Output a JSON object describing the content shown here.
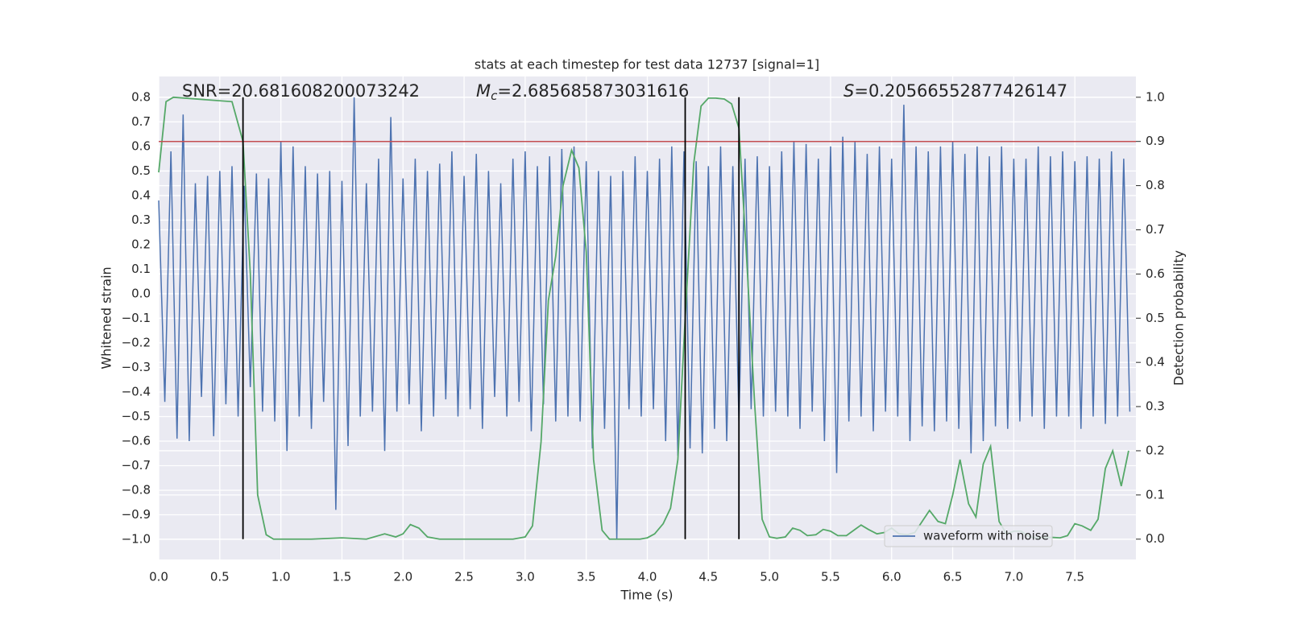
{
  "chart_data": {
    "type": "line",
    "title": "stats at each timestep for test data 12737 [signal=1]",
    "xlabel": "Time (s)",
    "ylabel": "Whitened strain",
    "y2label": "Detection probability",
    "xlim": [
      0,
      8
    ],
    "ylim": [
      -1.082,
      0.885
    ],
    "y2lim": [
      -0.046,
      1.047
    ],
    "xticks": [
      {
        "value": 0,
        "label": "0.0"
      },
      0.5,
      {
        "value": 1,
        "label": "1.0"
      },
      1.5,
      {
        "value": 2,
        "label": "2.0"
      },
      2.5,
      {
        "value": 3,
        "label": "3.0"
      },
      3.5,
      {
        "value": 4,
        "label": "4.0"
      },
      4.5,
      {
        "value": 5,
        "label": "5.0"
      },
      5.5,
      {
        "value": 6,
        "label": "6.0"
      },
      6.5,
      {
        "value": 7,
        "label": "7.0"
      },
      7.5
    ],
    "yticks": [
      0.8,
      0.7,
      0.6,
      0.5,
      0.4,
      0.3,
      0.2,
      0.1,
      {
        "value": 0,
        "label": "0.0"
      },
      {
        "value": -0.1,
        "label": "−0.1"
      },
      {
        "value": -0.2,
        "label": "−0.2"
      },
      {
        "value": -0.3,
        "label": "−0.3"
      },
      {
        "value": -0.4,
        "label": "−0.4"
      },
      {
        "value": -0.5,
        "label": "−0.5"
      },
      {
        "value": -0.6,
        "label": "−0.6"
      },
      {
        "value": -0.7,
        "label": "−0.7"
      },
      {
        "value": -0.8,
        "label": "−0.8"
      },
      {
        "value": -0.9,
        "label": "−0.9"
      },
      {
        "value": -1,
        "label": "−1.0"
      }
    ],
    "y2ticks": [
      {
        "value": 1,
        "label": "1.0"
      },
      0.9,
      0.8,
      0.7,
      0.6,
      0.5,
      0.4,
      0.3,
      0.2,
      0.1,
      {
        "value": 0,
        "label": "0.0"
      }
    ],
    "grid": true,
    "background": "#eaeaf2",
    "legend": "lower right",
    "annotations": [
      {
        "text": "SNR=20.681608200073242"
      },
      {
        "symbol": "M",
        "subscript": "c",
        "text": "=2.685685873031616"
      },
      {
        "symbol": "S",
        "text": "=0.20566552877426147"
      }
    ],
    "threshold": {
      "value": 0.9,
      "axis": "y2",
      "color": "#c44e52"
    },
    "vlines": {
      "x": [
        0.69,
        4.31,
        4.75
      ],
      "span": [
        0,
        1
      ],
      "axis": "y2",
      "color": "#000000"
    },
    "series": [
      {
        "name": "waveform with noise",
        "color": "#4c72b0",
        "x": [
          0,
          0.05,
          0.1,
          0.15,
          0.2,
          0.25,
          0.3,
          0.35,
          0.4,
          0.45,
          0.5,
          0.55,
          0.6,
          0.65,
          0.7,
          0.75,
          0.8,
          0.85,
          0.9,
          0.95,
          1,
          1.05,
          1.1,
          1.15,
          1.2,
          1.25,
          1.3,
          1.35,
          1.4,
          1.45,
          1.5,
          1.55,
          1.6,
          1.65,
          1.7,
          1.75,
          1.8,
          1.85,
          1.9,
          1.95,
          2,
          2.05,
          2.1,
          2.15,
          2.2,
          2.25,
          2.3,
          2.35,
          2.4,
          2.45,
          2.5,
          2.55,
          2.6,
          2.65,
          2.7,
          2.75,
          2.8,
          2.85,
          2.9,
          2.95,
          3,
          3.05,
          3.1,
          3.15,
          3.2,
          3.25,
          3.3,
          3.35,
          3.4,
          3.45,
          3.5,
          3.55,
          3.6,
          3.65,
          3.7,
          3.75,
          3.8,
          3.85,
          3.9,
          3.95,
          4,
          4.05,
          4.1,
          4.15,
          4.2,
          4.25,
          4.3,
          4.35,
          4.4,
          4.45,
          4.5,
          4.55,
          4.6,
          4.65,
          4.7,
          4.75,
          4.8,
          4.85,
          4.9,
          4.95,
          5,
          5.05,
          5.1,
          5.15,
          5.2,
          5.25,
          5.3,
          5.35,
          5.4,
          5.45,
          5.5,
          5.55,
          5.6,
          5.65,
          5.7,
          5.75,
          5.8,
          5.85,
          5.9,
          5.95,
          6,
          6.05,
          6.1,
          6.15,
          6.2,
          6.25,
          6.3,
          6.35,
          6.4,
          6.45,
          6.5,
          6.55,
          6.6,
          6.65,
          6.7,
          6.75,
          6.8,
          6.85,
          6.9,
          6.95,
          7,
          7.05,
          7.1,
          7.15,
          7.2,
          7.25,
          7.3,
          7.35,
          7.4,
          7.45,
          7.5,
          7.55,
          7.6,
          7.65,
          7.7,
          7.75,
          7.8,
          7.85,
          7.9,
          7.95
        ],
        "values": [
          0.38,
          -0.44,
          0.58,
          -0.59,
          0.73,
          -0.6,
          0.45,
          -0.42,
          0.48,
          -0.58,
          0.5,
          -0.45,
          0.52,
          -0.5,
          0.44,
          -0.38,
          0.49,
          -0.48,
          0.47,
          -0.52,
          0.62,
          -0.64,
          0.6,
          -0.5,
          0.52,
          -0.55,
          0.49,
          -0.44,
          0.5,
          -0.88,
          0.46,
          -0.62,
          0.8,
          -0.5,
          0.45,
          -0.48,
          0.55,
          -0.64,
          0.72,
          -0.48,
          0.47,
          -0.45,
          0.55,
          -0.56,
          0.5,
          -0.5,
          0.53,
          -0.43,
          0.58,
          -0.5,
          0.48,
          -0.47,
          0.57,
          -0.55,
          0.5,
          -0.42,
          0.45,
          -0.5,
          0.55,
          -0.44,
          0.58,
          -0.56,
          0.52,
          -0.45,
          0.56,
          -0.52,
          0.59,
          -0.5,
          0.6,
          -0.52,
          0.54,
          -0.63,
          0.5,
          -0.55,
          0.48,
          -1.0,
          0.5,
          -0.47,
          0.56,
          -0.5,
          0.5,
          -0.47,
          0.55,
          -0.6,
          0.6,
          -0.66,
          0.58,
          -0.63,
          0.54,
          -0.65,
          0.52,
          -0.55,
          0.6,
          -0.6,
          0.52,
          -0.52,
          0.55,
          -0.47,
          0.56,
          -0.5,
          0.52,
          -0.48,
          0.58,
          -0.5,
          0.62,
          -0.55,
          0.61,
          -0.48,
          0.55,
          -0.6,
          0.6,
          -0.73,
          0.64,
          -0.52,
          0.62,
          -0.5,
          0.57,
          -0.56,
          0.6,
          -0.48,
          0.55,
          -0.5,
          0.77,
          -0.6,
          0.6,
          -0.54,
          0.58,
          -0.56,
          0.6,
          -0.52,
          0.62,
          -0.55,
          0.57,
          -0.65,
          0.6,
          -0.6,
          0.56,
          -0.54,
          0.6,
          -0.55,
          0.55,
          -0.52,
          0.55,
          -0.5,
          0.6,
          -0.55,
          0.56,
          -0.5,
          0.58,
          -0.5,
          0.54,
          -0.55,
          0.56,
          -0.5,
          0.55,
          -0.53,
          0.58,
          -0.5,
          0.55,
          -0.48
        ]
      },
      {
        "color": "#55a868",
        "axis": "y2",
        "x": [
          0,
          0.06,
          0.12,
          0.6,
          0.69,
          0.75,
          0.81,
          0.88,
          0.94,
          1.25,
          1.5,
          1.7,
          1.85,
          1.94,
          2,
          2.06,
          2.13,
          2.2,
          2.3,
          2.9,
          3,
          3.06,
          3.13,
          3.19,
          3.25,
          3.31,
          3.38,
          3.44,
          3.5,
          3.56,
          3.63,
          3.69,
          3.94,
          4,
          4.06,
          4.13,
          4.19,
          4.25,
          4.31,
          4.38,
          4.44,
          4.5,
          4.56,
          4.63,
          4.69,
          4.75,
          4.81,
          4.88,
          4.94,
          5,
          5.06,
          5.13,
          5.19,
          5.25,
          5.31,
          5.38,
          5.44,
          5.5,
          5.56,
          5.63,
          5.69,
          5.75,
          5.81,
          5.88,
          5.94,
          6,
          6.06,
          6.13,
          6.19,
          6.25,
          6.31,
          6.38,
          6.44,
          6.5,
          6.56,
          6.63,
          6.69,
          6.75,
          6.81,
          6.88,
          6.94,
          7,
          7.06,
          7.13,
          7.19,
          7.25,
          7.31,
          7.38,
          7.44,
          7.5,
          7.56,
          7.63,
          7.69,
          7.75,
          7.81,
          7.88,
          7.94
        ],
        "values": [
          0.83,
          0.99,
          1.0,
          0.99,
          0.9,
          0.6,
          0.1,
          0.01,
          0.0,
          0.0,
          0.003,
          0.0,
          0.012,
          0.005,
          0.012,
          0.033,
          0.025,
          0.005,
          0.0,
          0.0,
          0.005,
          0.03,
          0.22,
          0.54,
          0.64,
          0.8,
          0.88,
          0.84,
          0.65,
          0.18,
          0.02,
          0.0,
          0.0,
          0.003,
          0.012,
          0.035,
          0.07,
          0.18,
          0.5,
          0.85,
          0.98,
          0.998,
          0.998,
          0.996,
          0.985,
          0.93,
          0.65,
          0.3,
          0.045,
          0.005,
          0.002,
          0.005,
          0.025,
          0.02,
          0.008,
          0.01,
          0.022,
          0.018,
          0.008,
          0.008,
          0.02,
          0.032,
          0.022,
          0.012,
          0.015,
          0.025,
          0.012,
          0.01,
          0.015,
          0.04,
          0.065,
          0.04,
          0.035,
          0.1,
          0.18,
          0.08,
          0.05,
          0.17,
          0.21,
          0.04,
          0.012,
          0.018,
          0.018,
          0.005,
          0.003,
          0.004,
          0.004,
          0.003,
          0.008,
          0.035,
          0.03,
          0.02,
          0.045,
          0.16,
          0.2,
          0.12,
          0.2
        ]
      }
    ]
  }
}
